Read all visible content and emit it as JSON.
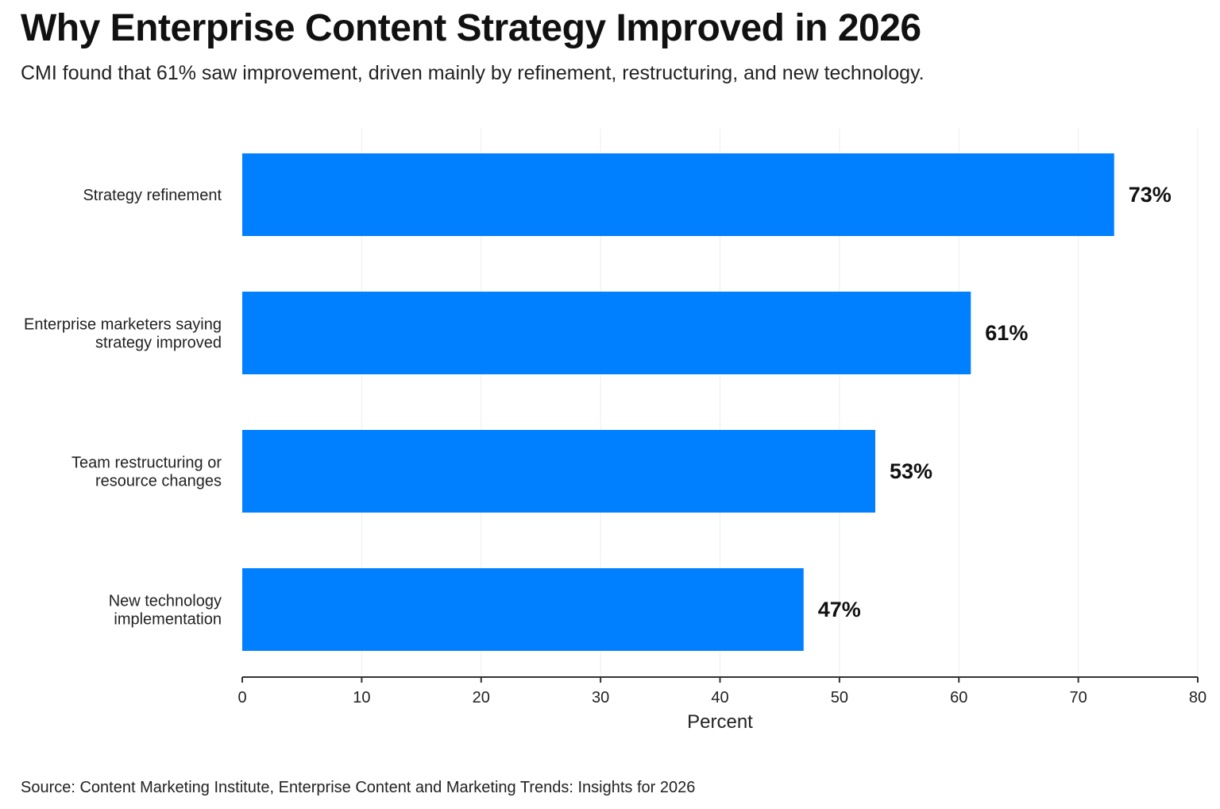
{
  "title": "Why Enterprise Content Strategy Improved in 2026",
  "subtitle": "CMI found that 61% saw improvement, driven mainly by refinement, restructuring, and new technology.",
  "source": "Source: Content Marketing Institute, Enterprise Content and Marketing Trends: Insights for 2026",
  "chart_data": {
    "type": "bar",
    "orientation": "horizontal",
    "title": "Why Enterprise Content Strategy Improved in 2026",
    "subtitle": "CMI found that 61% saw improvement, driven mainly by refinement, restructuring, and new technology.",
    "categories": [
      [
        "Strategy refinement"
      ],
      [
        "Enterprise marketers saying",
        "strategy improved"
      ],
      [
        "Team restructuring or",
        "resource changes"
      ],
      [
        "New technology",
        "implementation"
      ]
    ],
    "values": [
      73,
      61,
      53,
      47
    ],
    "data_labels": [
      "73%",
      "61%",
      "53%",
      "47%"
    ],
    "xlabel": "Percent",
    "ylabel": "",
    "xlim": [
      0,
      80
    ],
    "xticks": [
      0,
      10,
      20,
      30,
      40,
      50,
      60,
      70,
      80
    ],
    "grid": "vertical",
    "bar_color": "#0080FF"
  }
}
